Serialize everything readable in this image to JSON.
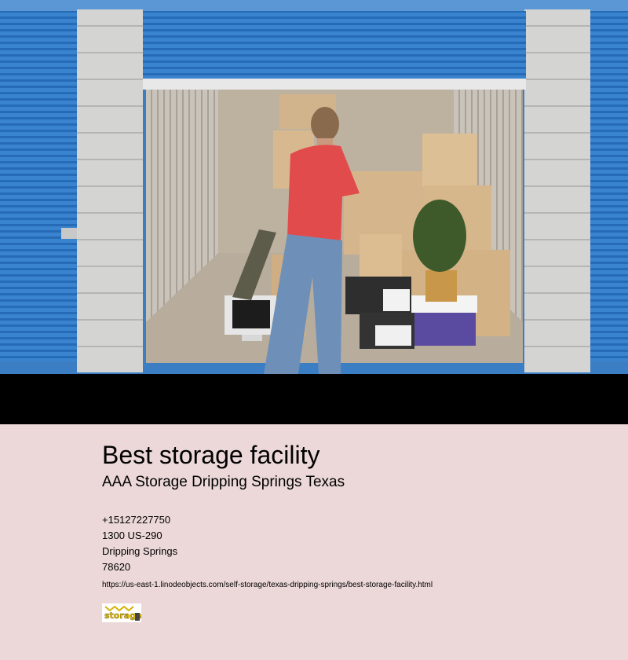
{
  "hero": {
    "image_alt": "storage unit with boxes and man",
    "colors": {
      "door_blue": "#2f78c6",
      "wall": "#d0d0cf",
      "band": "#000000"
    }
  },
  "listing": {
    "title": "Best storage facility",
    "business_name": "AAA Storage Dripping Springs Texas",
    "phone": "+15127227750",
    "street": "1300 US-290",
    "city": "Dripping Springs",
    "zip": "78620",
    "url": "https://us-east-1.linodeobjects.com/self-storage/texas-dripping-springs/best-storage-facility.html",
    "logo_text": "storage"
  },
  "colors": {
    "background": "#ecd8d8",
    "text": "#000000"
  }
}
